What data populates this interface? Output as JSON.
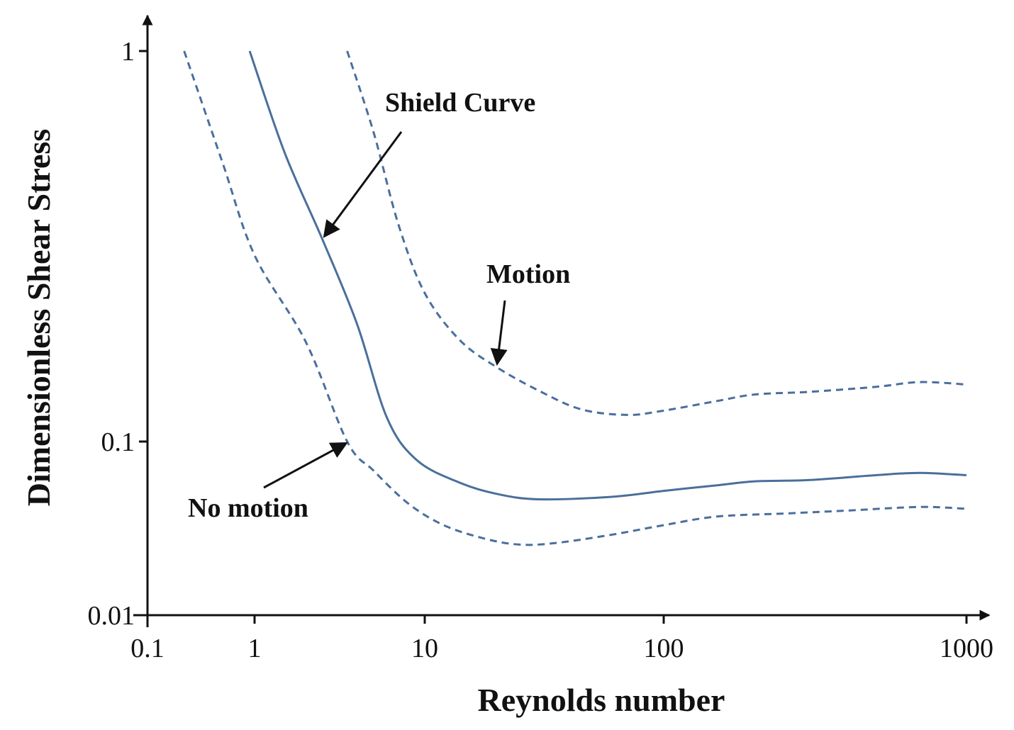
{
  "chart_data": {
    "type": "line",
    "title": "",
    "xlabel": "Reynolds number",
    "ylabel": "Dimensionless Shear Stress",
    "x_scale": "nonuniform-log",
    "y_scale": "nonuniform-log",
    "x_ticks": [
      {
        "value": 0.1,
        "label": "0.1"
      },
      {
        "value": 1,
        "label": "1"
      },
      {
        "value": 10,
        "label": "10"
      },
      {
        "value": 100,
        "label": "100"
      },
      {
        "value": 1000,
        "label": "1000"
      }
    ],
    "y_ticks": [
      {
        "value": 0.01,
        "label": "0.01"
      },
      {
        "value": 0.1,
        "label": "0.1"
      },
      {
        "value": 1,
        "label": "1"
      }
    ],
    "xlim": [
      0.1,
      1000
    ],
    "ylim": [
      0.01,
      1
    ],
    "grid": false,
    "series": [
      {
        "name": "Shield Curve",
        "style": "solid",
        "color": "#4a6f9b",
        "points": [
          [
            0.9,
            1.0
          ],
          [
            1.5,
            0.55
          ],
          [
            2.5,
            0.33
          ],
          [
            4,
            0.2
          ],
          [
            6,
            0.115
          ],
          [
            9,
            0.078
          ],
          [
            14,
            0.058
          ],
          [
            20,
            0.05
          ],
          [
            30,
            0.0465
          ],
          [
            60,
            0.048
          ],
          [
            100,
            0.052
          ],
          [
            150,
            0.056
          ],
          [
            200,
            0.059
          ],
          [
            300,
            0.06
          ],
          [
            500,
            0.064
          ],
          [
            700,
            0.066
          ],
          [
            1000,
            0.064
          ]
        ]
      },
      {
        "name": "Motion",
        "style": "dashed",
        "color": "#4a6f9b",
        "points": [
          [
            3.5,
            1.0
          ],
          [
            5,
            0.62
          ],
          [
            7,
            0.36
          ],
          [
            10,
            0.24
          ],
          [
            14,
            0.182
          ],
          [
            20,
            0.155
          ],
          [
            30,
            0.135
          ],
          [
            45,
            0.121
          ],
          [
            70,
            0.117
          ],
          [
            100,
            0.12
          ],
          [
            150,
            0.127
          ],
          [
            200,
            0.132
          ],
          [
            300,
            0.134
          ],
          [
            500,
            0.138
          ],
          [
            700,
            0.142
          ],
          [
            1000,
            0.14
          ]
        ]
      },
      {
        "name": "No motion",
        "style": "dashed",
        "color": "#4a6f9b",
        "points": [
          [
            0.22,
            1.0
          ],
          [
            0.5,
            0.52
          ],
          [
            1,
            0.3
          ],
          [
            2,
            0.18
          ],
          [
            3.5,
            0.1
          ],
          [
            5,
            0.068
          ],
          [
            8,
            0.044
          ],
          [
            12,
            0.033
          ],
          [
            18,
            0.0275
          ],
          [
            25,
            0.0255
          ],
          [
            35,
            0.026
          ],
          [
            60,
            0.029
          ],
          [
            100,
            0.033
          ],
          [
            150,
            0.037
          ],
          [
            250,
            0.0385
          ],
          [
            400,
            0.04
          ],
          [
            700,
            0.042
          ],
          [
            1000,
            0.041
          ]
        ]
      }
    ],
    "annotations": [
      {
        "text": "Shield Curve",
        "points_to": "Shield Curve",
        "at": [
          2.5,
          0.33
        ]
      },
      {
        "text": "Motion",
        "points_to": "Motion",
        "at": [
          20,
          0.155
        ]
      },
      {
        "text": "No motion",
        "points_to": "No motion",
        "at": [
          3.6,
          0.1
        ]
      }
    ]
  }
}
